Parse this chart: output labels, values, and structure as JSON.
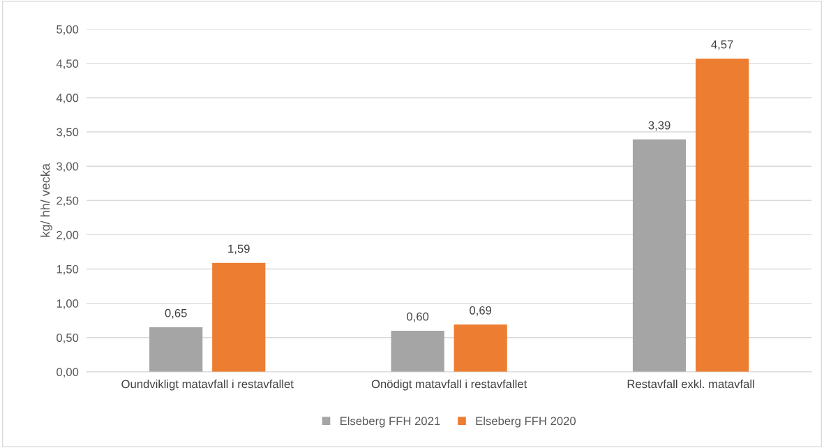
{
  "chart_data": {
    "type": "bar",
    "ylabel": "kg/ hh/ vecka",
    "categories": [
      "Oundvikligt matavfall i restavfallet",
      "Onödigt matavfall i restavfallet",
      "Restavfall exkl. matavfall"
    ],
    "series": [
      {
        "name": "Elseberg FFH 2021",
        "color": "#a5a5a5",
        "values": [
          0.65,
          0.6,
          3.39
        ],
        "value_labels": [
          "0,65",
          "0,60",
          "3,39"
        ]
      },
      {
        "name": "Elseberg FFH 2020",
        "color": "#ed7d31",
        "values": [
          1.59,
          0.69,
          4.57
        ],
        "value_labels": [
          "1,59",
          "0,69",
          "4,57"
        ]
      }
    ],
    "ylim": [
      0,
      5
    ],
    "yticks": [
      {
        "value": 0,
        "label": "0,00"
      },
      {
        "value": 0.5,
        "label": "0,50"
      },
      {
        "value": 1,
        "label": "1,00"
      },
      {
        "value": 1.5,
        "label": "1,50"
      },
      {
        "value": 2,
        "label": "2,00"
      },
      {
        "value": 2.5,
        "label": "2,50"
      },
      {
        "value": 3,
        "label": "3,00"
      },
      {
        "value": 3.5,
        "label": "3,50"
      },
      {
        "value": 4,
        "label": "4,00"
      },
      {
        "value": 4.5,
        "label": "4,50"
      },
      {
        "value": 5,
        "label": "5,00"
      }
    ],
    "grid": "y",
    "legend": "bottom"
  }
}
